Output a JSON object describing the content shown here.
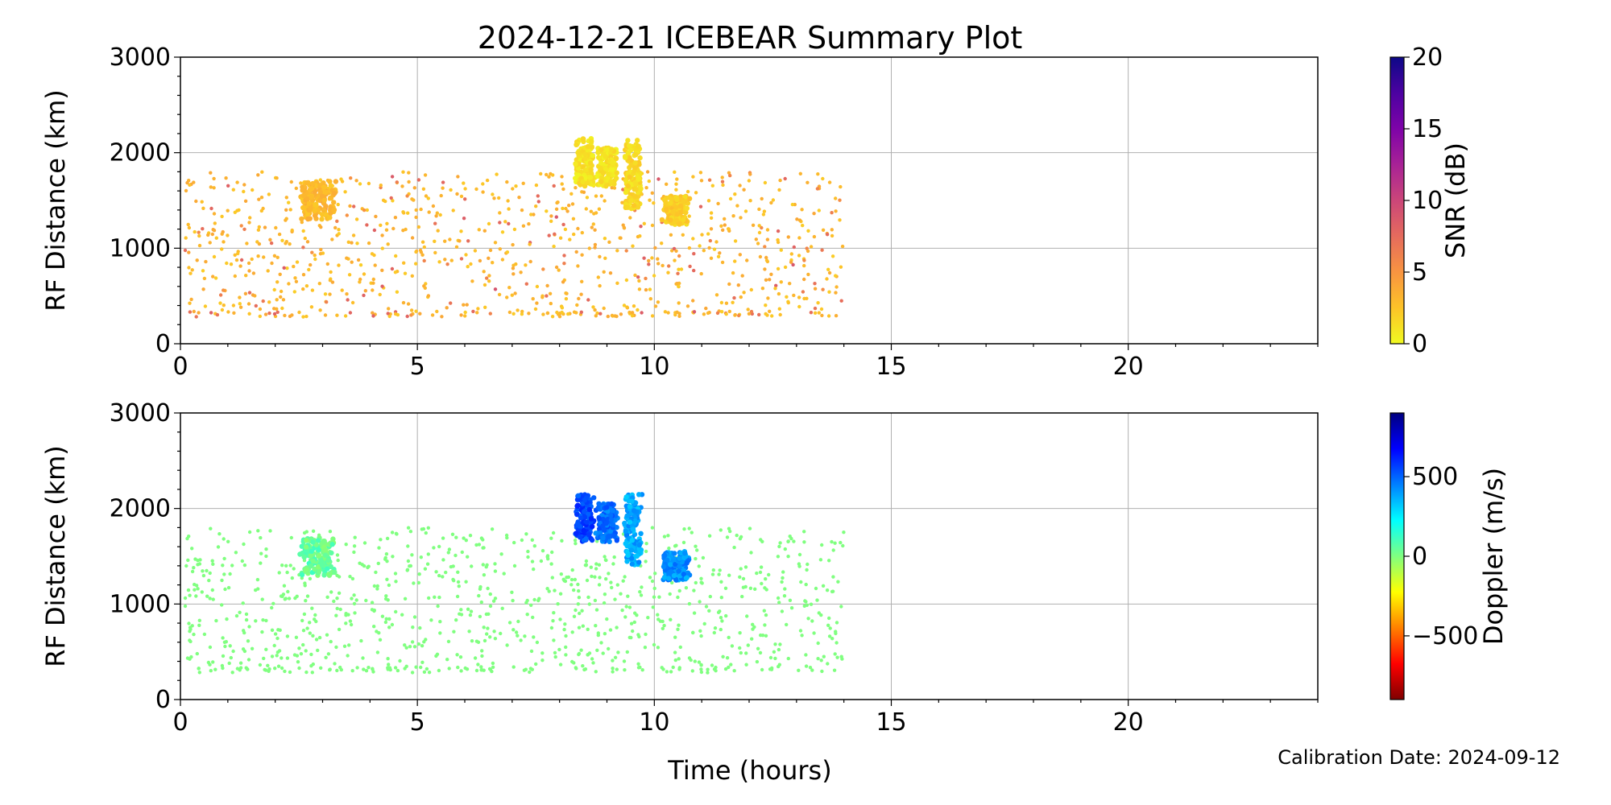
{
  "figure": {
    "title": "2024-12-21 ICEBEAR Summary Plot",
    "xlabel": "Time (hours)",
    "calibration": "Calibration Date: 2024-09-12"
  },
  "chart_data": [
    {
      "type": "scatter",
      "panel": "top",
      "ylabel": "RF Distance (km)",
      "xlim": [
        0,
        24
      ],
      "ylim": [
        0,
        3000
      ],
      "xticks": [
        0,
        5,
        10,
        15,
        20
      ],
      "yticks": [
        0,
        1000,
        2000,
        3000
      ],
      "grid": true,
      "colorbar": {
        "label": "SNR (dB)",
        "range": [
          0,
          20
        ],
        "ticks": [
          0,
          5,
          10,
          15,
          20
        ],
        "colormap": "plasma_r",
        "stops": [
          "#f0f921",
          "#fdc328",
          "#f89441",
          "#e56b5d",
          "#cb4679",
          "#a82296",
          "#7e03a8",
          "#4c02a1",
          "#0d0887"
        ]
      },
      "background_color_value": 2,
      "clusters": [
        {
          "t": [
            2.5,
            3.3
          ],
          "r": [
            1300,
            1700
          ],
          "value": 3
        },
        {
          "t": [
            8.3,
            8.75
          ],
          "r": [
            1650,
            2150
          ],
          "value": 1
        },
        {
          "t": [
            8.75,
            9.25
          ],
          "r": [
            1650,
            2050
          ],
          "value": 1
        },
        {
          "t": [
            9.35,
            9.75
          ],
          "r": [
            1400,
            2150
          ],
          "value": 1.5
        },
        {
          "t": [
            10.15,
            10.75
          ],
          "r": [
            1250,
            1550
          ],
          "value": 2
        }
      ]
    },
    {
      "type": "scatter",
      "panel": "bottom",
      "ylabel": "RF Distance (km)",
      "xlim": [
        0,
        24
      ],
      "ylim": [
        0,
        3000
      ],
      "xticks": [
        0,
        5,
        10,
        15,
        20
      ],
      "yticks": [
        0,
        1000,
        2000,
        3000
      ],
      "grid": true,
      "colorbar": {
        "label": "Doppler (m/s)",
        "range": [
          -900,
          900
        ],
        "ticks": [
          -500,
          0,
          500
        ],
        "colormap": "jet_r",
        "stops": [
          "#7f0000",
          "#ff0000",
          "#ff8000",
          "#ffff00",
          "#80ff80",
          "#00ffff",
          "#0080ff",
          "#0000ff",
          "#00007f"
        ]
      },
      "background_color_value": 0,
      "clusters": [
        {
          "t": [
            2.5,
            3.3
          ],
          "r": [
            1300,
            1700
          ],
          "value": 50
        },
        {
          "t": [
            8.3,
            8.75
          ],
          "r": [
            1650,
            2150
          ],
          "value": 550
        },
        {
          "t": [
            8.75,
            9.25
          ],
          "r": [
            1650,
            2050
          ],
          "value": 480
        },
        {
          "t": [
            9.35,
            9.75
          ],
          "r": [
            1400,
            2150
          ],
          "value": 380
        },
        {
          "t": [
            10.15,
            10.75
          ],
          "r": [
            1250,
            1550
          ],
          "value": 420
        }
      ]
    }
  ]
}
